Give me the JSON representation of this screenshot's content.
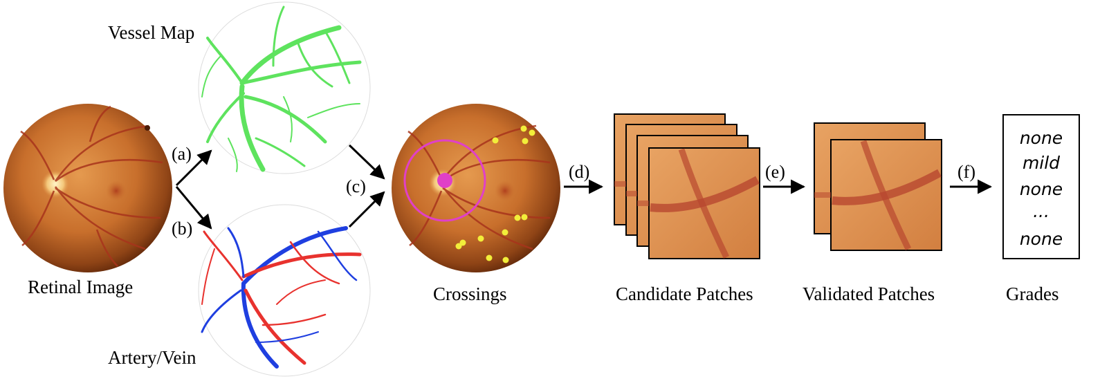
{
  "labels": {
    "vessel_map": "Vessel Map",
    "retinal_image": "Retinal Image",
    "artery_vein": "Artery/Vein",
    "crossings": "Crossings",
    "candidate_patches": "Candidate Patches",
    "validated_patches": "Validated Patches",
    "grades": "Grades"
  },
  "steps": {
    "a": "(a)",
    "b": "(b)",
    "c": "(c)",
    "d": "(d)",
    "e": "(e)",
    "f": "(f)"
  },
  "grades_list": [
    "none",
    "mild",
    "none",
    "...",
    "none"
  ],
  "colors": {
    "fundus_center": "#d9843d",
    "fundus_edge": "#7a3410",
    "vessel_green": "#5ee35e",
    "artery_red": "#e8322e",
    "vein_blue": "#1f3fe0",
    "crossing_ring": "#e040c8",
    "crossing_dot": "#f2ee3a",
    "patch_bg": "#d98c4e",
    "patch_vessel": "#b8472f"
  },
  "patch_counts": {
    "candidate": 4,
    "validated": 2
  }
}
